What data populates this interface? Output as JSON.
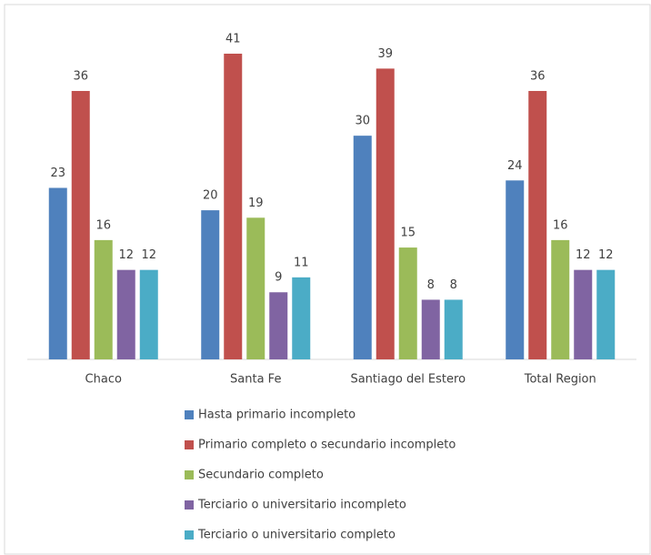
{
  "chart_data": {
    "type": "bar",
    "categories": [
      "Chaco",
      "Santa Fe",
      "Santiago del Estero",
      "Total Region"
    ],
    "series": [
      {
        "name": "Hasta primario incompleto",
        "color": "#4f81bd",
        "values": [
          23,
          20,
          30,
          24
        ]
      },
      {
        "name": "Primario completo o secundario incompleto",
        "color": "#c0504d",
        "values": [
          36,
          41,
          39,
          36
        ]
      },
      {
        "name": "Secundario completo",
        "color": "#9bbb59",
        "values": [
          16,
          19,
          15,
          16
        ]
      },
      {
        "name": "Terciario o universitario incompleto",
        "color": "#8064a2",
        "values": [
          12,
          9,
          8,
          12
        ]
      },
      {
        "name": "Terciario o universitario completo",
        "color": "#4bacc6",
        "values": [
          12,
          11,
          8,
          12
        ]
      }
    ],
    "legend": "bottom"
  }
}
